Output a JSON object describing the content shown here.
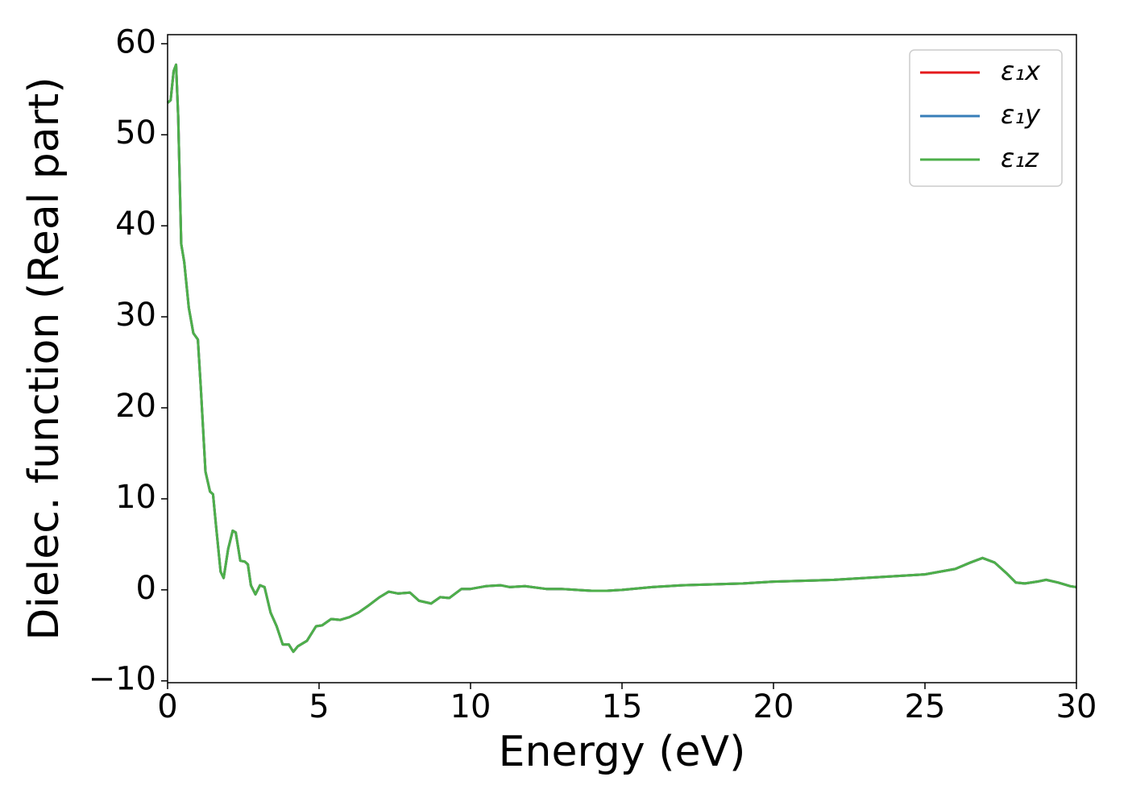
{
  "chart_data": {
    "type": "line",
    "xlabel": "Energy (eV)",
    "ylabel": "Dielec. function (Real part)",
    "x": [
      0,
      0.1,
      0.2,
      0.28,
      0.35,
      0.45,
      0.55,
      0.7,
      0.85,
      1.0,
      1.1,
      1.25,
      1.4,
      1.5,
      1.6,
      1.75,
      1.85,
      2.0,
      2.15,
      2.25,
      2.4,
      2.55,
      2.65,
      2.75,
      2.9,
      3.05,
      3.2,
      3.4,
      3.6,
      3.8,
      4.0,
      4.15,
      4.3,
      4.6,
      4.9,
      5.1,
      5.4,
      5.7,
      6.0,
      6.3,
      6.6,
      7.0,
      7.3,
      7.6,
      8.0,
      8.3,
      8.7,
      9.0,
      9.3,
      9.7,
      10.0,
      10.5,
      11.0,
      11.3,
      11.8,
      12.5,
      13.0,
      13.5,
      14.0,
      14.5,
      15.0,
      16.0,
      17.0,
      18.0,
      19.0,
      20,
      22,
      24,
      25,
      26,
      26.5,
      26.9,
      27.3,
      27.7,
      28.0,
      28.3,
      28.7,
      29.0,
      29.4,
      29.8,
      30
    ],
    "series": [
      {
        "name": "ε₁x",
        "color": "#e41a1c",
        "values": [
          53.5,
          53.8,
          57,
          57.7,
          52,
          38,
          36,
          31,
          28.2,
          27.5,
          22,
          13,
          10.8,
          10.5,
          7,
          2,
          1.3,
          4.5,
          6.5,
          6.3,
          3.2,
          3.1,
          2.8,
          0.5,
          -0.5,
          0.5,
          0.3,
          -2.5,
          -4,
          -6,
          -6,
          -6.8,
          -6.2,
          -5.6,
          -4,
          -3.9,
          -3.2,
          -3.3,
          -3,
          -2.5,
          -1.8,
          -0.8,
          -0.2,
          -0.4,
          -0.3,
          -1.2,
          -1.5,
          -0.8,
          -0.9,
          0.1,
          0.1,
          0.4,
          0.5,
          0.3,
          0.4,
          0.1,
          0.1,
          0.0,
          -0.1,
          -0.1,
          0.0,
          0.3,
          0.5,
          0.6,
          0.7,
          0.9,
          1.1,
          1.5,
          1.7,
          2.3,
          3.0,
          3.5,
          3.0,
          1.8,
          0.8,
          0.7,
          0.9,
          1.1,
          0.8,
          0.4,
          0.3
        ]
      },
      {
        "name": "ε₁y",
        "color": "#377eb8",
        "values": [
          53.5,
          53.8,
          57,
          57.7,
          52,
          38,
          36,
          31,
          28.2,
          27.5,
          22,
          13,
          10.8,
          10.5,
          7,
          2,
          1.3,
          4.5,
          6.5,
          6.3,
          3.2,
          3.1,
          2.8,
          0.5,
          -0.5,
          0.5,
          0.3,
          -2.5,
          -4,
          -6,
          -6,
          -6.8,
          -6.2,
          -5.6,
          -4,
          -3.9,
          -3.2,
          -3.3,
          -3,
          -2.5,
          -1.8,
          -0.8,
          -0.2,
          -0.4,
          -0.3,
          -1.2,
          -1.5,
          -0.8,
          -0.9,
          0.1,
          0.1,
          0.4,
          0.5,
          0.3,
          0.4,
          0.1,
          0.1,
          0.0,
          -0.1,
          -0.1,
          0.0,
          0.3,
          0.5,
          0.6,
          0.7,
          0.9,
          1.1,
          1.5,
          1.7,
          2.3,
          3.0,
          3.5,
          3.0,
          1.8,
          0.8,
          0.7,
          0.9,
          1.1,
          0.8,
          0.4,
          0.3
        ]
      },
      {
        "name": "ε₁z",
        "color": "#4daf4a",
        "values": [
          53.5,
          53.8,
          57,
          57.7,
          52,
          38,
          36,
          31,
          28.2,
          27.5,
          22,
          13,
          10.8,
          10.5,
          7,
          2,
          1.3,
          4.5,
          6.5,
          6.3,
          3.2,
          3.1,
          2.8,
          0.5,
          -0.5,
          0.5,
          0.3,
          -2.5,
          -4,
          -6,
          -6,
          -6.8,
          -6.2,
          -5.6,
          -4,
          -3.9,
          -3.2,
          -3.3,
          -3,
          -2.5,
          -1.8,
          -0.8,
          -0.2,
          -0.4,
          -0.3,
          -1.2,
          -1.5,
          -0.8,
          -0.9,
          0.1,
          0.1,
          0.4,
          0.5,
          0.3,
          0.4,
          0.1,
          0.1,
          0.0,
          -0.1,
          -0.1,
          0.0,
          0.3,
          0.5,
          0.6,
          0.7,
          0.9,
          1.1,
          1.5,
          1.7,
          2.3,
          3.0,
          3.5,
          3.0,
          1.8,
          0.8,
          0.7,
          0.9,
          1.1,
          0.8,
          0.4,
          0.3
        ]
      }
    ],
    "xlim": [
      0,
      30
    ],
    "xticks": [
      0,
      5,
      10,
      15,
      20,
      25,
      30
    ],
    "ylim": [
      -10.2,
      61
    ],
    "yticks": [
      {
        "value": -10,
        "label": "−10"
      },
      0,
      10,
      20,
      30,
      40,
      50,
      60
    ],
    "grid": false,
    "legend": "upper right"
  }
}
